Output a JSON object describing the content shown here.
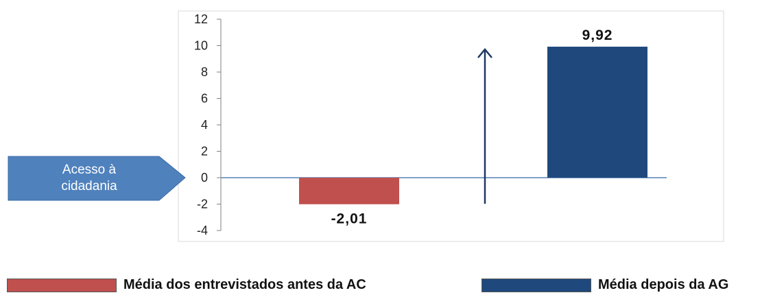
{
  "chart_data": {
    "type": "bar",
    "categories": [
      "Média dos entrevistados antes da AC",
      "Média depois da AG"
    ],
    "values": [
      -2.01,
      9.92
    ],
    "data_labels": [
      "-2,01",
      "9,92"
    ],
    "colors": [
      "#c0504d",
      "#1f497d"
    ],
    "ylim": [
      -4,
      12
    ],
    "yticks": [
      "12",
      "10",
      "8",
      "6",
      "4",
      "2",
      "0",
      "-2",
      "-4"
    ],
    "ytick_values": [
      12,
      10,
      8,
      6,
      4,
      2,
      0,
      -2,
      -4
    ],
    "grid": false,
    "legend_position": "bottom",
    "annotation_arrow": "upward arrow between the two bars"
  },
  "callout": {
    "line1": "Acesso à",
    "line2": "cidadania",
    "color": "#4f81bd"
  },
  "legend": {
    "items": [
      {
        "label": "Média dos entrevistados antes da AC",
        "color": "#c0504d"
      },
      {
        "label": "Média depois da AG",
        "color": "#1f497d"
      }
    ]
  }
}
